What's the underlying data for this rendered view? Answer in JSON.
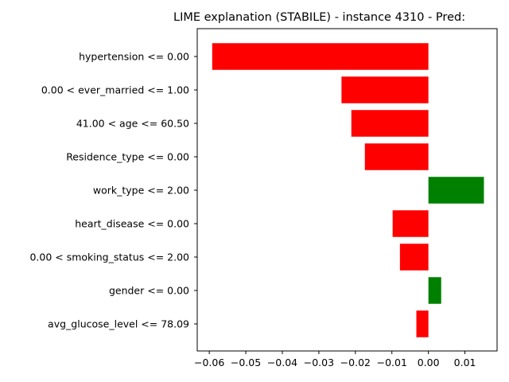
{
  "chart_data": {
    "type": "bar",
    "orientation": "horizontal",
    "title": "LIME explanation (STABILE) - instance 4310 - Pred:",
    "xlabel": "",
    "ylabel": "",
    "xlim": [
      -0.0633,
      0.0188
    ],
    "grid": false,
    "legend": "none",
    "categories": [
      "hypertension <= 0.00",
      "0.00 < ever_married <= 1.00",
      "41.00 < age <= 60.50",
      "Residence_type <= 0.00",
      "work_type <= 2.00",
      "heart_disease <= 0.00",
      "0.00 < smoking_status <= 2.00",
      "gender <= 0.00",
      "avg_glucose_level <= 78.09"
    ],
    "values": [
      -0.0592,
      -0.0238,
      -0.0211,
      -0.0174,
      0.0152,
      -0.0098,
      -0.0078,
      0.0035,
      -0.0033
    ],
    "xticks": [
      -0.06,
      -0.05,
      -0.04,
      -0.03,
      -0.02,
      -0.01,
      0.0,
      0.01
    ],
    "xtick_labels": [
      "−0.06",
      "−0.05",
      "−0.04",
      "−0.03",
      "−0.02",
      "−0.01",
      "0.00",
      "0.01"
    ],
    "colors": {
      "positive": "#008000",
      "negative": "#ff0000"
    }
  }
}
